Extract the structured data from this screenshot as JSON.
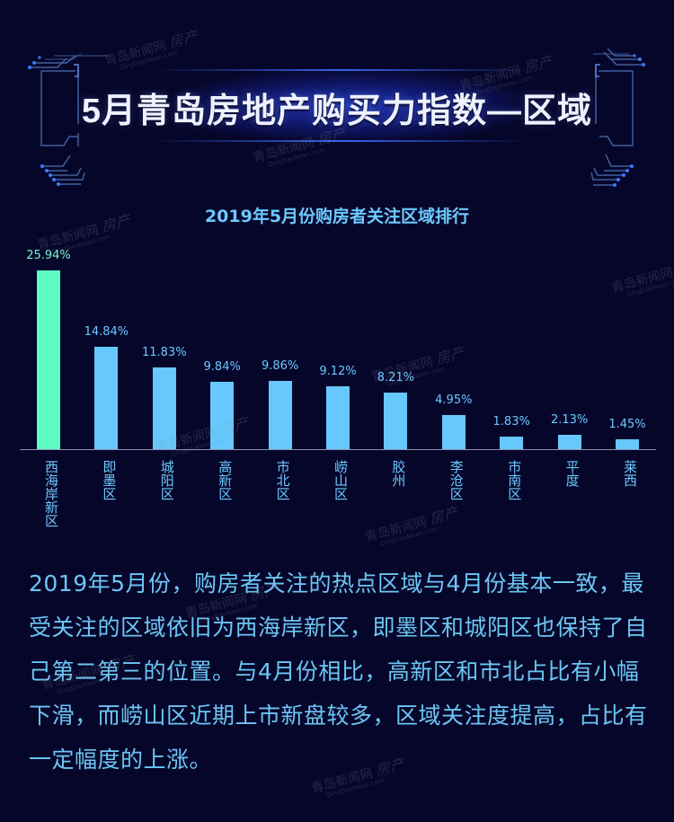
{
  "header": {
    "title": "5月青岛房地产购买力指数—区域"
  },
  "chart": {
    "title": "2019年5月份购房者关注区域排行"
  },
  "chart_data": {
    "type": "bar",
    "title": "2019年5月份购房者关注区域排行",
    "categories": [
      "西海岸新区",
      "即墨区",
      "城阳区",
      "高新区",
      "市北区",
      "崂山区",
      "胶州",
      "李沧区",
      "市南区",
      "平度",
      "莱西"
    ],
    "values": [
      25.94,
      14.84,
      11.83,
      9.84,
      9.86,
      9.12,
      8.21,
      4.95,
      1.83,
      2.13,
      1.45
    ],
    "value_labels": [
      "25.94%",
      "14.84%",
      "11.83%",
      "9.84%",
      "9.86%",
      "9.12%",
      "8.21%",
      "4.95%",
      "1.83%",
      "2.13%",
      "1.45%"
    ],
    "unit": "%",
    "xlabel": "",
    "ylabel": "",
    "ylim": [
      0,
      26
    ],
    "grid": false,
    "legend": null,
    "highlight_index": 0,
    "colors": {
      "highlight": "#5cfcc0",
      "default": "#66c8fc",
      "label": "#6cc9ff"
    }
  },
  "summary": {
    "text": "2019年5月份，购房者关注的热点区域与4月份基本一致，最受关注的区域依旧为西海岸新区，即墨区和城阳区也保持了自己第二第三的位置。与4月份相比，高新区和市北占比有小幅下滑，而崂山区近期上市新盘较多，区域关注度提高，占比有一定幅度的上涨。"
  },
  "watermark": {
    "brand": "青岛新闻网",
    "domain": "QingDaoNews.com",
    "section": "房产"
  }
}
